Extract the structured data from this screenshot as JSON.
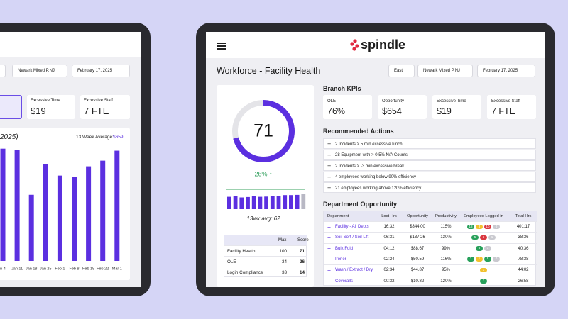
{
  "left_tablet": {
    "filters": [
      "Newark Mixed P,NJ",
      "February 17, 2025"
    ],
    "kpis": [
      {
        "label": "Excessive Time",
        "value": "$19"
      },
      {
        "label": "Excessive Staff",
        "value": "7 FTE"
      }
    ],
    "chart": {
      "title": "2025)",
      "avg_label": "13 Week Average:",
      "avg_value": "$659",
      "categories": [
        "n 4",
        "Jan 11",
        "Jan 18",
        "Jan 25",
        "Feb 1",
        "Feb 8",
        "Feb 15",
        "Feb 22",
        "Mar 1"
      ],
      "values": [
        776,
        767,
        457,
        669,
        590,
        580,
        654,
        693,
        762
      ],
      "color": "#5b2fe0"
    }
  },
  "header": {
    "logo": "spindle"
  },
  "page": {
    "title": "Workforce - Facility Health",
    "filters": [
      "East",
      "Newark Mixed P,NJ",
      "February 17, 2025"
    ]
  },
  "health": {
    "score": 71,
    "change": "26% ↑",
    "trend": {
      "values": [
        58,
        60,
        55,
        57,
        60,
        58,
        59,
        60,
        61,
        66,
        66,
        67,
        70
      ],
      "color": "#5b2fe0"
    },
    "avg_label": "13wk avg: 62",
    "table": {
      "columns": [
        "Max",
        "Score"
      ],
      "rows": [
        [
          "Facility Health",
          100,
          71
        ],
        [
          "OLE",
          34,
          26
        ],
        [
          "Login Compliance",
          33,
          14
        ]
      ]
    }
  },
  "branch_kpis": {
    "title": "Branch KPIs",
    "cards": [
      {
        "label": "OLE",
        "value": "76%"
      },
      {
        "label": "Opportunity",
        "value": "$654"
      },
      {
        "label": "Excessive Time",
        "value": "$19"
      },
      {
        "label": "Excessive Staff",
        "value": "7 FTE"
      }
    ]
  },
  "actions": {
    "title": "Recommended Actions",
    "items": [
      "2 Incidents > 5 min excessive lunch",
      "28 Equipment with > 0.5% N/A Counts",
      "2 Incidents > -3 min excessive break",
      "4 employees working below 90% efficiency",
      "21 employees working above 120% efficiency"
    ]
  },
  "departments": {
    "title": "Department Opportunity",
    "columns": [
      "Department",
      "Lost Hrs",
      "Opportunity",
      "Productivity",
      "Employees Logged in",
      "Total Hrs"
    ],
    "rows": [
      [
        "Facility - All Depts",
        "16:32",
        "$344.00",
        "115%",
        [
          {
            "color": "#27a05a",
            "count": 18
          },
          {
            "color": "#f2c12e",
            "count": 3
          },
          {
            "color": "#d9363e",
            "count": 10
          },
          {
            "color": "#c9c9cf",
            "count": 0
          }
        ],
        "401:17"
      ],
      [
        "Soil Sort / Soil Lift",
        "06:31",
        "$137.26",
        "130%",
        [
          {
            "color": "#27a05a",
            "count": 5
          },
          {
            "color": "#d9363e",
            "count": 3
          },
          {
            "color": "#c9c9cf",
            "count": 1
          }
        ],
        "38:36"
      ],
      [
        "Bulk Fold",
        "04:12",
        "$88.67",
        "99%",
        [
          {
            "color": "#27a05a",
            "count": 6
          },
          {
            "color": "#c9c9cf",
            "count": 1
          }
        ],
        "40:36"
      ],
      [
        "Ironer",
        "02:24",
        "$50.59",
        "116%",
        [
          {
            "color": "#27a05a",
            "count": 2
          },
          {
            "color": "#f2c12e",
            "count": 1
          },
          {
            "color": "#27a05a",
            "count": 5
          },
          {
            "color": "#c9c9cf",
            "count": 0
          }
        ],
        "78:38"
      ],
      [
        "Wash / Extract / Dry",
        "02:34",
        "$44.87",
        "95%",
        [
          {
            "color": "#f2c12e",
            "count": 1
          }
        ],
        "44:02"
      ],
      [
        "Coveralls",
        "00:32",
        "$10.82",
        "120%",
        [
          {
            "color": "#27a05a",
            "count": 1
          }
        ],
        "26:58"
      ]
    ]
  }
}
